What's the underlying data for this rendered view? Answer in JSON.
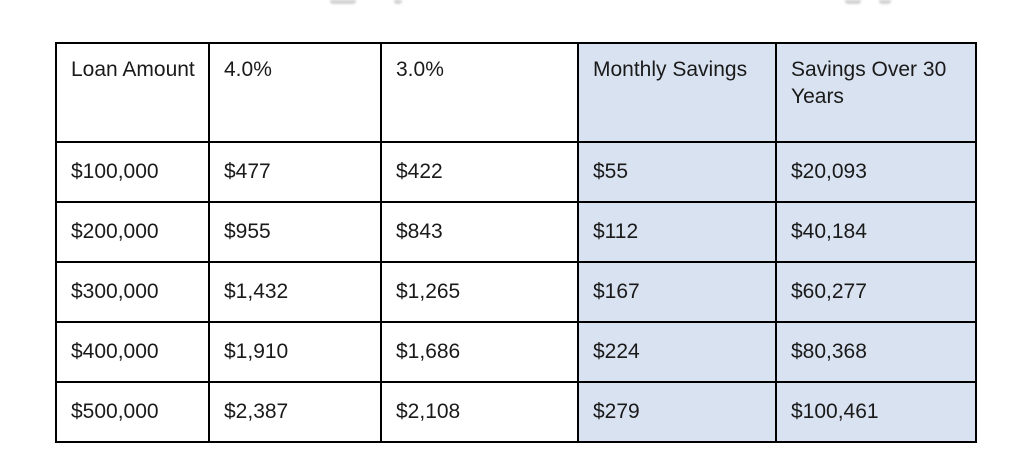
{
  "table": {
    "columns": [
      {
        "label": "Loan Amount",
        "highlight": false
      },
      {
        "label": "4.0%",
        "highlight": false
      },
      {
        "label": "3.0%",
        "highlight": false
      },
      {
        "label": "Monthly Savings",
        "highlight": true
      },
      {
        "label": "Savings Over 30 Years",
        "highlight": true
      }
    ],
    "rows": [
      {
        "loan_amount": "$100,000",
        "rate_4": "$477",
        "rate_3": "$422",
        "monthly_savings": "$55",
        "savings_30yr": "$20,093"
      },
      {
        "loan_amount": "$200,000",
        "rate_4": "$955",
        "rate_3": "$843",
        "monthly_savings": "$112",
        "savings_30yr": "$40,184"
      },
      {
        "loan_amount": "$300,000",
        "rate_4": "$1,432",
        "rate_3": "$1,265",
        "monthly_savings": "$167",
        "savings_30yr": "$60,277"
      },
      {
        "loan_amount": "$400,000",
        "rate_4": "$1,910",
        "rate_3": "$1,686",
        "monthly_savings": "$224",
        "savings_30yr": "$80,368"
      },
      {
        "loan_amount": "$500,000",
        "rate_4": "$2,387",
        "rate_3": "$2,108",
        "monthly_savings": "$279",
        "savings_30yr": "$100,461"
      }
    ],
    "colors": {
      "highlight_bg": "#d9e2f0",
      "border": "#000000",
      "text": "#1a1a1a",
      "background": "#ffffff"
    }
  }
}
